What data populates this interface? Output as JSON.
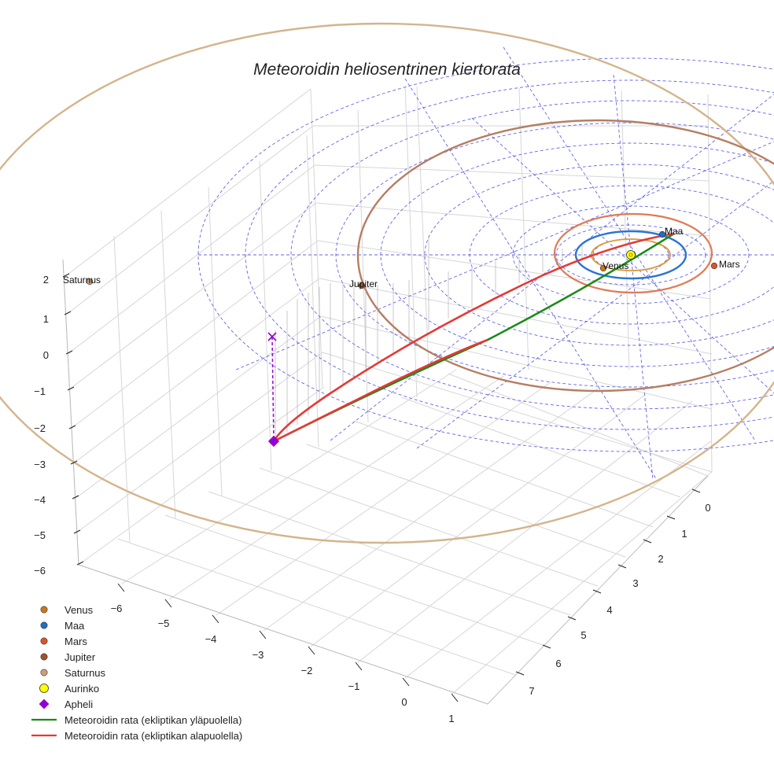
{
  "chart_data": {
    "type": "3d-line",
    "title": "Meteoroidin heliosentrinen kiertorata",
    "z_ticks": [
      "2",
      "1",
      "0",
      "−1",
      "−2",
      "−3",
      "−4",
      "−5",
      "−6"
    ],
    "x_ticks": [
      "−6",
      "−5",
      "−4",
      "−3",
      "−2",
      "−1",
      "0",
      "1"
    ],
    "y_ticks": [
      "0",
      "1",
      "2",
      "3",
      "4",
      "5",
      "6",
      "7"
    ],
    "planets": [
      {
        "name": "Venus",
        "color": "#c9771a"
      },
      {
        "name": "Maa",
        "color": "#1f6fc4"
      },
      {
        "name": "Mars",
        "color": "#d9552a"
      },
      {
        "name": "Jupiter",
        "color": "#a0522d"
      },
      {
        "name": "Saturnus",
        "color": "#c8a07a"
      }
    ],
    "orbit_colors": {
      "Venus": "#d99a3a",
      "Maa": "#2a74d4",
      "Mars": "#e07a55",
      "Jupiter": "#b57e63",
      "Saturnus": "#d4b48c"
    },
    "sun": {
      "name": "Aurinko",
      "color": "#ffff00"
    },
    "aphelion": {
      "name": "Apheli",
      "color": "#9400d3"
    },
    "meteoroid_paths": [
      {
        "name": "Meteoroidin rata (ekliptikan yläpuolella)",
        "color": "#1a8a1a"
      },
      {
        "name": "Meteoroidin rata (ekliptikan alapuolella)",
        "color": "#e53935"
      }
    ],
    "grid": true,
    "legend_position": "bottom-left"
  }
}
